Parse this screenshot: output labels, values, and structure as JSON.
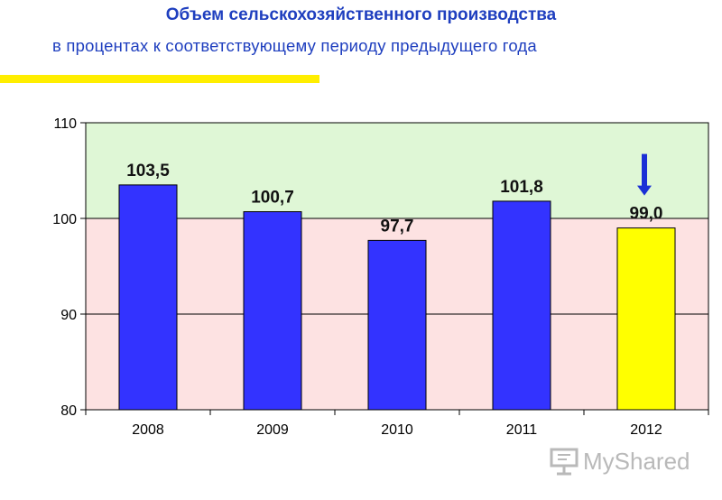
{
  "header": {
    "title": "Объем сельскохозяйственного производства",
    "subtitle": "в процентах к соответствующему периоду предыдущего года"
  },
  "colors": {
    "title": "#1f3fbf",
    "accent_bar": "#ffee00",
    "bar_default": "#3333ff",
    "bar_highlight": "#ffff00",
    "zone_above": "#dff7d6",
    "zone_below": "#fde2e2",
    "arrow": "#1a2fd6"
  },
  "chart_data": {
    "type": "bar",
    "categories": [
      "2008",
      "2009",
      "2010",
      "2011",
      "2012"
    ],
    "values": [
      103.5,
      100.7,
      97.7,
      101.8,
      99.0
    ],
    "value_labels": [
      "103,5",
      "100,7",
      "97,7",
      "101,8",
      "99,0"
    ],
    "ylim": [
      80,
      110
    ],
    "yticks": [
      80,
      90,
      100,
      110
    ],
    "baseline": 100,
    "highlight_index": 4,
    "arrow_direction": "down",
    "grid": true,
    "legend": "none"
  },
  "watermark": {
    "text": "MyShared",
    "icon": "presentation-screen-icon"
  }
}
